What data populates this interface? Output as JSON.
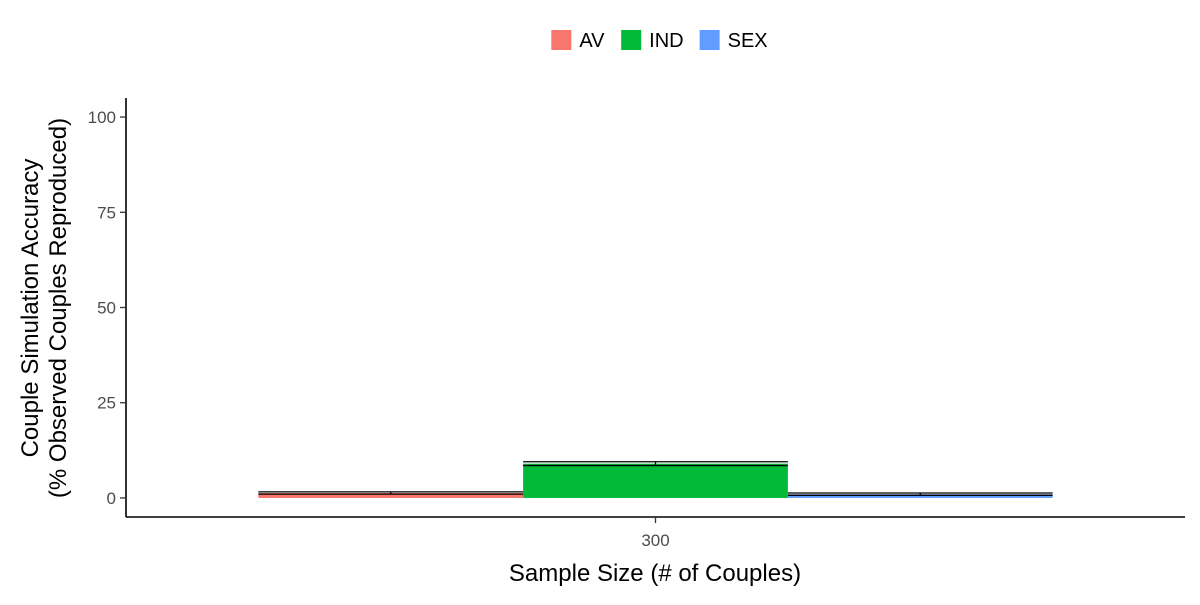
{
  "chart_data": {
    "type": "bar",
    "xlabel": "Sample Size (# of Couples)",
    "ylabel_lines": [
      "Couple Simulation Accuracy",
      "(% Observed Couples Reproduced)"
    ],
    "categories": [
      "300"
    ],
    "ylim": [
      -5,
      105
    ],
    "yticks": [
      0,
      25,
      50,
      75,
      100
    ],
    "grid": false,
    "legend_position": "top",
    "series": [
      {
        "name": "AV",
        "color": "#F8766D",
        "values": [
          1.3
        ],
        "error": [
          0.3
        ]
      },
      {
        "name": "IND",
        "color": "#00BA38",
        "values": [
          9.0
        ],
        "error": [
          0.5
        ]
      },
      {
        "name": "SEX",
        "color": "#619CFF",
        "values": [
          1.0
        ],
        "error": [
          0.3
        ]
      }
    ]
  }
}
